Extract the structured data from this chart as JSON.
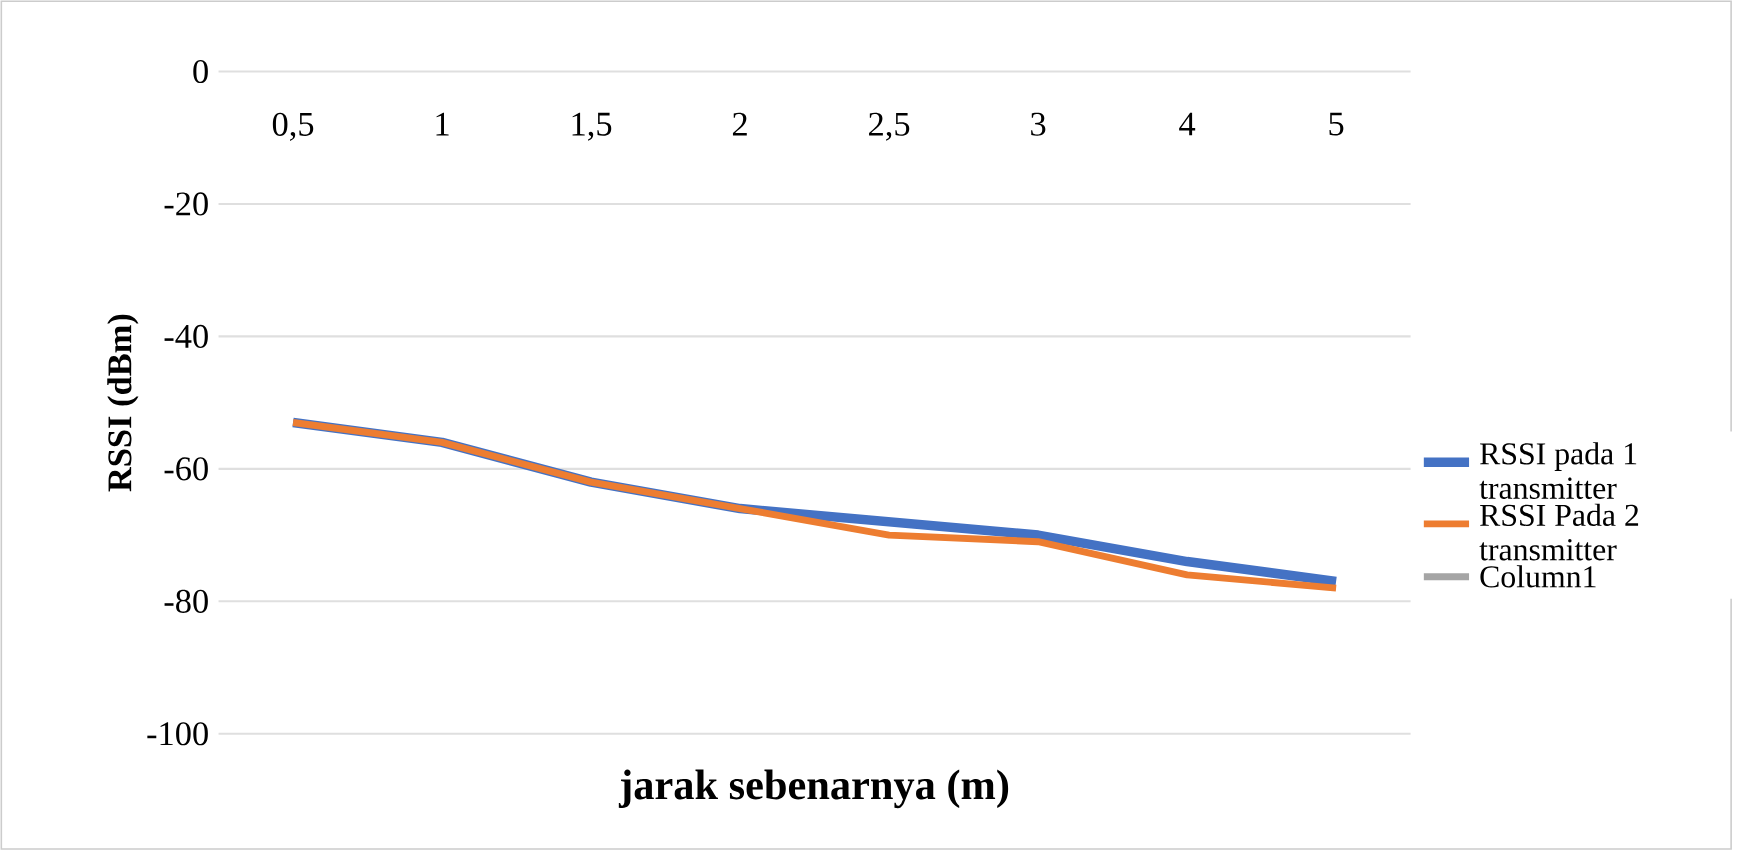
{
  "chart_data": {
    "type": "line",
    "xlabel": "jarak sebenarnya (m)",
    "ylabel": "RSSI (dBm)",
    "categories": [
      "0,5",
      "1",
      "1,5",
      "2",
      "2,5",
      "3",
      "4",
      "5"
    ],
    "series": [
      {
        "name": "RSSI pada 1 transmitter",
        "color": "#4472c4",
        "values": [
          -53,
          -56,
          -62,
          -66,
          -68,
          -70,
          -74,
          -77
        ]
      },
      {
        "name": "RSSI Pada 2 transmitter",
        "color": "#ed7d31",
        "values": [
          -53,
          -56,
          -62,
          -66,
          -70,
          -71,
          -76,
          -78
        ]
      },
      {
        "name": "Column1",
        "color": "#a5a5a5",
        "values": [
          null,
          null,
          null,
          null,
          null,
          null,
          null,
          null
        ]
      }
    ],
    "ylim": [
      -100,
      0
    ],
    "yticks": [
      -100,
      -80,
      -60,
      -40,
      -20,
      0
    ],
    "grid": "y",
    "legend": "right",
    "marker": "none",
    "line_style": "solid"
  }
}
